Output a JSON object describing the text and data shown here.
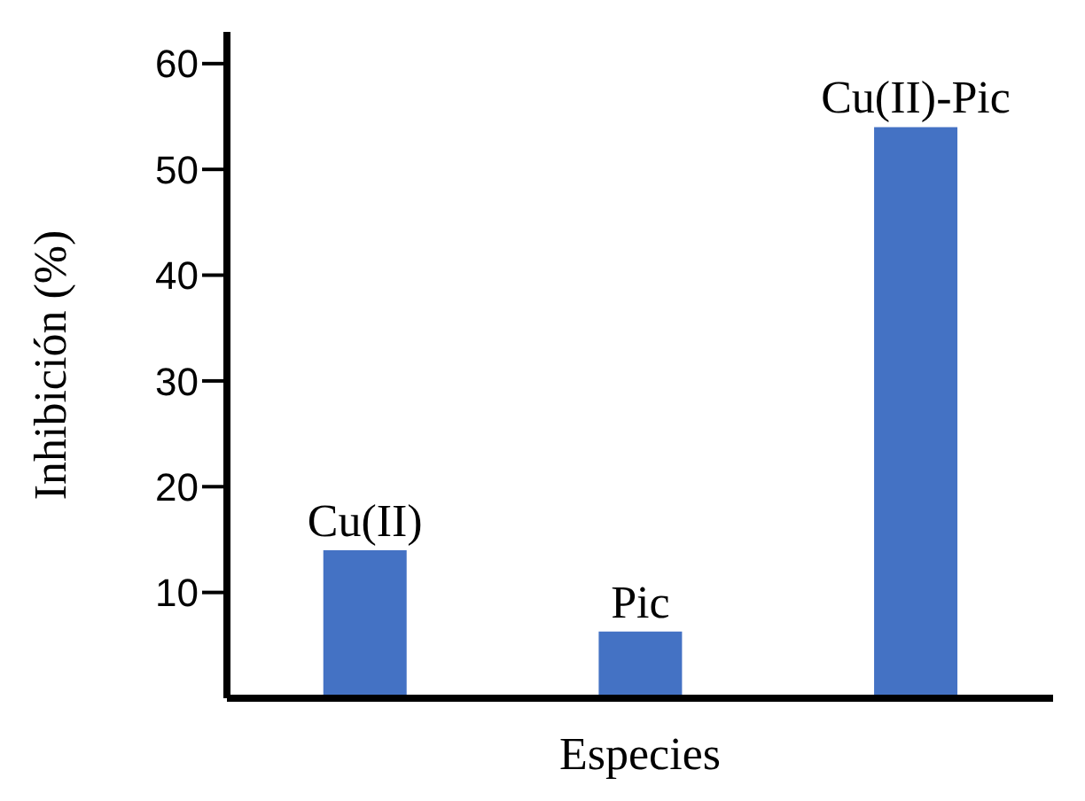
{
  "chart_data": {
    "type": "bar",
    "xlabel": "Especies",
    "ylabel": "Inhibición (%)",
    "categories": [
      "Cu(II)",
      "Pic",
      "Cu(II)-Pic"
    ],
    "values": [
      14,
      6.3,
      54
    ],
    "color": "#4472c4",
    "ylim": [
      0,
      63
    ],
    "yticks": [
      10,
      20,
      30,
      40,
      50,
      60
    ],
    "grid": false,
    "legend": false
  }
}
